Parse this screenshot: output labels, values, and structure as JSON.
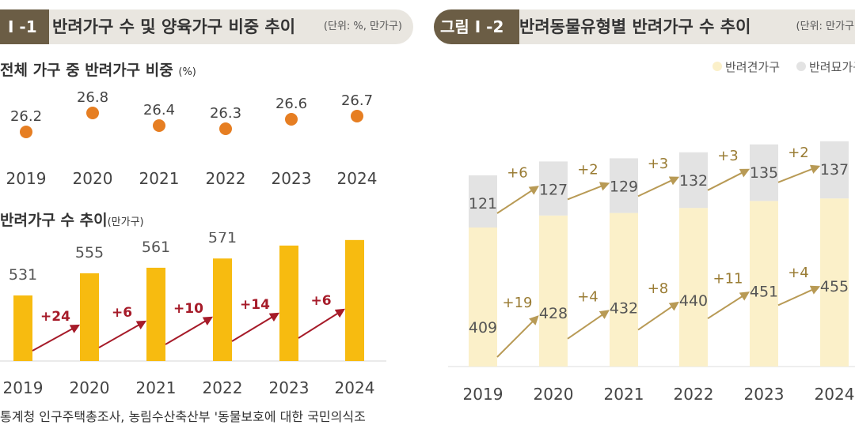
{
  "left": {
    "fig_tag": "I -1",
    "title": "반려가구 수 및 양육가구 비중 추이",
    "unit": "(단위: %, 만가구)",
    "subtitle1": "전체 가구 중 반려가구 비중",
    "subtitle1_unit": "(%)",
    "subtitle2": "반려가구 수 추이",
    "subtitle2_unit": "(만가구)",
    "source": "통계청 인구주택총조사, 농림수산축산부 '동물보호에 대한 국민의식조"
  },
  "right": {
    "fig_tag": "그림 I -2",
    "title": "반려동물유형별 반려가구 수 추이",
    "unit": "(단위: 만가구)",
    "legend_dog": "반려견가구",
    "legend_cat": "반려묘가구"
  },
  "colors": {
    "dot": "#e67e22",
    "bar_gold": "#f7bb10",
    "arrow_red": "#a61b29",
    "dog": "#fbf0c9",
    "cat": "#e3e3e3",
    "arrow_gold": "#b89a55"
  },
  "chart_data": [
    {
      "type": "scatter",
      "title": "전체 가구 중 반려가구 비중",
      "unit": "%",
      "categories": [
        "2019",
        "2020",
        "2021",
        "2022",
        "2023",
        "2024"
      ],
      "values": [
        26.2,
        26.8,
        26.4,
        26.3,
        26.6,
        26.7
      ],
      "labels": [
        "26.2",
        "26.8",
        "26.4",
        "26.3",
        "26.6",
        "26.7"
      ]
    },
    {
      "type": "bar",
      "title": "반려가구 수 추이",
      "unit": "만가구",
      "categories": [
        "2019",
        "2020",
        "2021",
        "2022",
        "2023",
        "2024"
      ],
      "values": [
        531,
        555,
        561,
        571,
        585,
        591
      ],
      "changes": [
        "+24",
        "+6",
        "+10",
        "+14",
        "+6"
      ]
    },
    {
      "type": "bar",
      "title": "반려동물유형별 반려가구 수 추이",
      "unit": "만가구",
      "stacked": true,
      "categories": [
        "2019",
        "2020",
        "2021",
        "2022",
        "2023",
        "2024"
      ],
      "series": [
        {
          "name": "반려견가구",
          "values": [
            409,
            428,
            432,
            440,
            451,
            455
          ],
          "changes": [
            "+19",
            "+4",
            "+8",
            "+11",
            "+4"
          ]
        },
        {
          "name": "반려묘가구",
          "values": [
            121,
            127,
            129,
            132,
            135,
            137
          ],
          "changes": [
            "+6",
            "+2",
            "+3",
            "+3",
            "+2"
          ]
        }
      ]
    }
  ]
}
